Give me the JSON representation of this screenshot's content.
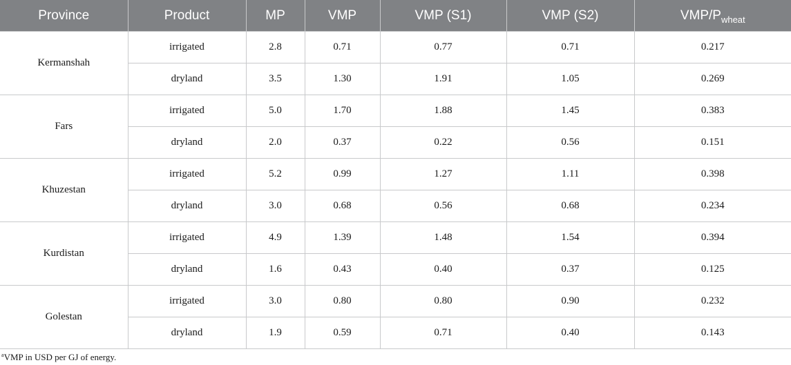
{
  "table": {
    "headers": {
      "province": "Province",
      "product": "Product",
      "mp": "MP",
      "vmp": "VMP",
      "vmp_s1": "VMP (S1)",
      "vmp_s2": "VMP (S2)",
      "ratio_main": "VMP/P",
      "ratio_sub": "wheat"
    },
    "rows": [
      {
        "province": "Kermanshah",
        "product": "irrigated",
        "mp": "2.8",
        "vmp": "0.71",
        "vmp_s1": "0.77",
        "vmp_s2": "0.71",
        "ratio": "0.217"
      },
      {
        "province": "Kermanshah",
        "product": "dryland",
        "mp": "3.5",
        "vmp": "1.30",
        "vmp_s1": "1.91",
        "vmp_s2": "1.05",
        "ratio": "0.269"
      },
      {
        "province": "Fars",
        "product": "irrigated",
        "mp": "5.0",
        "vmp": "1.70",
        "vmp_s1": "1.88",
        "vmp_s2": "1.45",
        "ratio": "0.383"
      },
      {
        "province": "Fars",
        "product": "dryland",
        "mp": "2.0",
        "vmp": "0.37",
        "vmp_s1": "0.22",
        "vmp_s2": "0.56",
        "ratio": "0.151"
      },
      {
        "province": "Khuzestan",
        "product": "irrigated",
        "mp": "5.2",
        "vmp": "0.99",
        "vmp_s1": "1.27",
        "vmp_s2": "1.11",
        "ratio": "0.398"
      },
      {
        "province": "Khuzestan",
        "product": "dryland",
        "mp": "3.0",
        "vmp": "0.68",
        "vmp_s1": "0.56",
        "vmp_s2": "0.68",
        "ratio": "0.234"
      },
      {
        "province": "Kurdistan",
        "product": "irrigated",
        "mp": "4.9",
        "vmp": "1.39",
        "vmp_s1": "1.48",
        "vmp_s2": "1.54",
        "ratio": "0.394"
      },
      {
        "province": "Kurdistan",
        "product": "dryland",
        "mp": "1.6",
        "vmp": "0.43",
        "vmp_s1": "0.40",
        "vmp_s2": "0.37",
        "ratio": "0.125"
      },
      {
        "province": "Golestan",
        "product": "irrigated",
        "mp": "3.0",
        "vmp": "0.80",
        "vmp_s1": "0.80",
        "vmp_s2": "0.90",
        "ratio": "0.232"
      },
      {
        "province": "Golestan",
        "product": "dryland",
        "mp": "1.9",
        "vmp": "0.59",
        "vmp_s1": "0.71",
        "vmp_s2": "0.40",
        "ratio": "0.143"
      }
    ]
  },
  "footnote": {
    "marker": "a",
    "text": "VMP in USD per GJ of energy."
  }
}
